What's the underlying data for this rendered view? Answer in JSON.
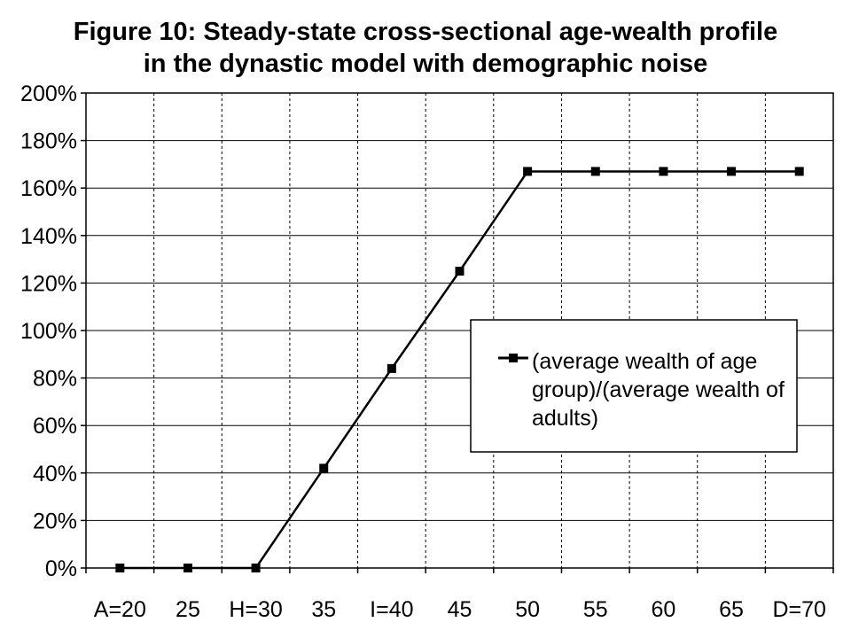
{
  "chart_data": {
    "type": "line",
    "title_lines": [
      "Figure 10: Steady-state cross-sectional age-wealth profile",
      "in the dynastic model with demographic noise"
    ],
    "x_tick_labels": [
      "A=20",
      "25",
      "H=30",
      "35",
      "I=40",
      "45",
      "50",
      "55",
      "60",
      "65",
      "D=70"
    ],
    "y_tick_labels": [
      "0%",
      "20%",
      "40%",
      "60%",
      "80%",
      "100%",
      "120%",
      "140%",
      "160%",
      "180%",
      "200%"
    ],
    "ylim": [
      0,
      200
    ],
    "y_unit": "%",
    "grid": {
      "x": "dashed",
      "y": "solid"
    },
    "legend": {
      "position": "middle-right",
      "lines": [
        "(average wealth of age",
        "group)/(average wealth of",
        "adults)"
      ]
    },
    "series": [
      {
        "name": "(average wealth of age group)/(average wealth of adults)",
        "marker": "square",
        "color": "#000000",
        "x": [
          "A=20",
          "25",
          "H=30",
          "35",
          "I=40",
          "45",
          "50",
          "55",
          "60",
          "65",
          "D=70"
        ],
        "values": [
          0,
          0,
          0,
          42,
          84,
          125,
          167,
          167,
          167,
          167,
          167
        ]
      }
    ]
  }
}
